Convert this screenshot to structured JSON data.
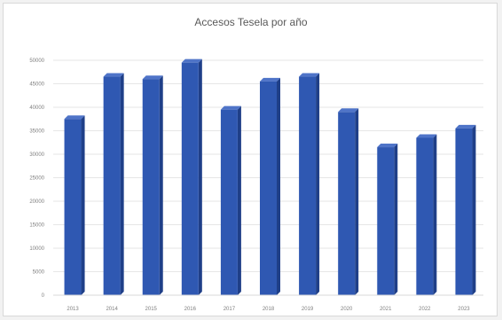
{
  "chart_data": {
    "type": "bar",
    "title": "Accesos Tesela por año",
    "categories": [
      "2013",
      "2014",
      "2015",
      "2016",
      "2017",
      "2018",
      "2019",
      "2020",
      "2021",
      "2022",
      "2023"
    ],
    "values": [
      37500,
      46500,
      46000,
      49500,
      39500,
      45500,
      46500,
      39000,
      31500,
      33500,
      35500
    ],
    "ylim": [
      0,
      50000
    ],
    "yticks": [
      "0",
      "5000",
      "10000",
      "15000",
      "20000",
      "25000",
      "30000",
      "35000",
      "40000",
      "45000",
      "50000"
    ],
    "xlabel": "",
    "ylabel": "",
    "grid": true,
    "legend": "none",
    "colors": {
      "bar_front": "#2f58b2",
      "bar_side": "#1f3f88",
      "bar_top": "#4f74c8",
      "grid": "#e6e6e6"
    }
  }
}
